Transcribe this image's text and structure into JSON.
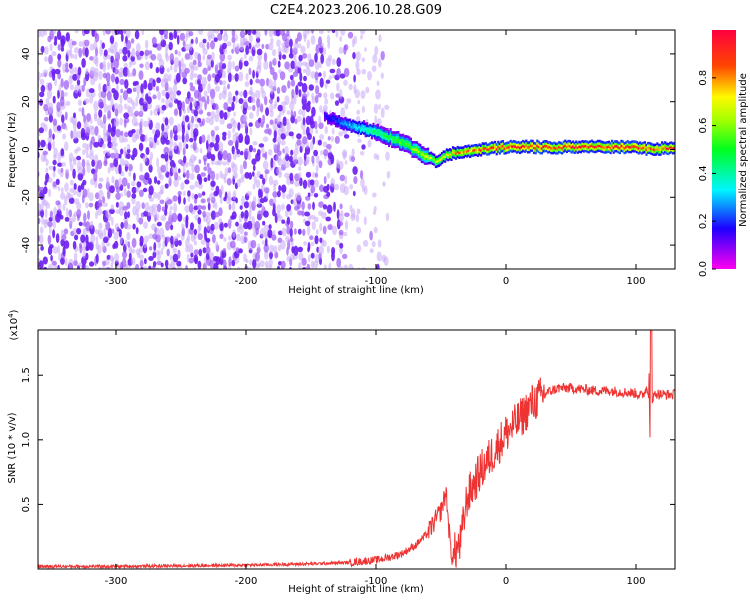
{
  "title": "C2E4.2023.206.10.28.G09",
  "chart_data": [
    {
      "type": "heatmap",
      "xlabel": "Height of straight line (km)",
      "ylabel": "Frequency (Hz)",
      "xlim": [
        -360,
        130
      ],
      "ylim": [
        -50,
        50
      ],
      "xticks": [
        -300,
        -200,
        -100,
        0,
        100
      ],
      "xtick_labels": [
        "-300",
        "-200",
        "-100",
        "0",
        "100"
      ],
      "yticks": [
        -40,
        -20,
        0,
        20,
        40
      ],
      "ytick_labels": [
        "-40",
        "-20",
        "0",
        "20",
        "40"
      ],
      "colorbar": {
        "label": "Normalized spectral amplitude",
        "range": [
          0,
          1
        ],
        "ticks": [
          0.0,
          0.2,
          0.4,
          0.6,
          0.8
        ],
        "tick_labels": [
          "0.0",
          "0.2",
          "0.4",
          "0.6",
          "0.8"
        ],
        "colormap": "gist_rainbow (magenta→blue→cyan→green→yellow→red)"
      },
      "features": {
        "noise_region_height_km": [
          -360,
          -90
        ],
        "signal_track": {
          "x": [
            -140,
            -120,
            -100,
            -80,
            -65,
            -55,
            -45,
            -35,
            -20,
            0,
            50,
            100,
            110,
            130
          ],
          "freq_hz": [
            14,
            10,
            7,
            3,
            -2,
            -5,
            -2,
            -1,
            0,
            1,
            1,
            1,
            0,
            1
          ],
          "peak_amplitude": [
            0.15,
            0.3,
            0.45,
            0.55,
            0.6,
            0.65,
            0.75,
            0.8,
            0.85,
            0.9,
            0.9,
            0.9,
            0.85,
            0.9
          ]
        }
      },
      "grid": false,
      "legend": "none"
    },
    {
      "type": "line",
      "xlabel": "Height of straight line (km)",
      "ylabel": "SNR (10 * v/v)",
      "scale_label": "(x10^4)",
      "xlim": [
        -360,
        130
      ],
      "ylim": [
        0,
        1.85
      ],
      "xticks": [
        -300,
        -200,
        -100,
        0,
        100
      ],
      "xtick_labels": [
        "-300",
        "-200",
        "-100",
        "0",
        "100"
      ],
      "yticks": [
        0.5,
        1.0,
        1.5
      ],
      "ytick_labels": [
        "0.5",
        "1.0",
        "1.5"
      ],
      "color": "#ee3333",
      "series": [
        {
          "x": [
            -360,
            -300,
            -250,
            -200,
            -150,
            -120,
            -100,
            -90,
            -80,
            -70,
            -60,
            -50,
            -46,
            -44,
            -42,
            -40,
            -35,
            -30,
            -20,
            -10,
            0,
            10,
            20,
            30,
            40,
            50,
            60,
            70,
            80,
            90,
            100,
            105,
            108,
            110,
            112,
            115,
            120,
            130
          ],
          "values": [
            0.02,
            0.02,
            0.025,
            0.03,
            0.04,
            0.05,
            0.07,
            0.09,
            0.12,
            0.18,
            0.28,
            0.45,
            0.6,
            0.32,
            0.1,
            0.12,
            0.2,
            0.55,
            0.75,
            0.9,
            1.05,
            1.15,
            1.28,
            1.36,
            1.4,
            1.4,
            1.39,
            1.38,
            1.38,
            1.37,
            1.36,
            1.34,
            1.4,
            1.35,
            1.3,
            1.36,
            1.35,
            1.35
          ]
        }
      ],
      "grid": false,
      "legend": "none"
    }
  ]
}
